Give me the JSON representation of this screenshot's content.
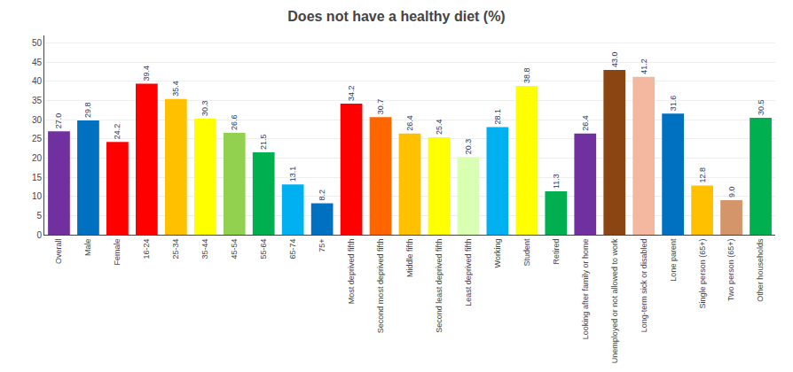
{
  "chart_data": {
    "type": "bar",
    "title": "Does not have a healthy diet (%)",
    "categories": [
      "Overall",
      "Male",
      "Female",
      "16-24",
      "25-34",
      "35-44",
      "45-54",
      "55-64",
      "65-74",
      "75+",
      "Most deprived fifth",
      "Second most deprived fifth",
      "Middle fifth",
      "Second least deprived fifth",
      "Least deprived fifth",
      "Working",
      "Student",
      "Retired",
      "Looking after family or home",
      "Unemployed or not allowed to work",
      "Long-term sick or disabled",
      "Lone parent",
      "Single person (65+)",
      "Two person (65+)",
      "Other households"
    ],
    "values": [
      27.0,
      29.8,
      24.2,
      39.4,
      35.4,
      30.3,
      26.6,
      21.5,
      13.1,
      8.2,
      34.2,
      30.7,
      26.4,
      25.4,
      20.3,
      28.1,
      38.8,
      11.3,
      26.4,
      43.0,
      41.2,
      31.6,
      12.8,
      9.0,
      30.5
    ],
    "value_labels": [
      "27.0",
      "29.8",
      "24.2",
      "39.4",
      "35.4",
      "30.3",
      "26.6",
      "21.5",
      "13.1",
      "8.2",
      "34.2",
      "30.7",
      "26.4",
      "25.4",
      "20.3",
      "28.1",
      "38.8",
      "11.3",
      "26.4",
      "43.0",
      "41.2",
      "31.6",
      "12.8",
      "9.0",
      "30.5"
    ],
    "colors": [
      "#7030a0",
      "#0070c0",
      "#ff0000",
      "#ff0000",
      "#ffc000",
      "#ffff00",
      "#92d050",
      "#00b050",
      "#00b0f0",
      "#0070c0",
      "#ff0000",
      "#ff6600",
      "#ffc000",
      "#ffff00",
      "#d9ffb3",
      "#00b0f0",
      "#ffff00",
      "#00b050",
      "#7030a0",
      "#8b4513",
      "#f4b8a0",
      "#0070c0",
      "#ffc000",
      "#d4956a",
      "#00b050"
    ],
    "ylim": [
      0,
      52
    ],
    "yticks": [
      0,
      5,
      10,
      15,
      20,
      25,
      30,
      35,
      40,
      45,
      50
    ],
    "grid": true,
    "data_labels": true
  }
}
